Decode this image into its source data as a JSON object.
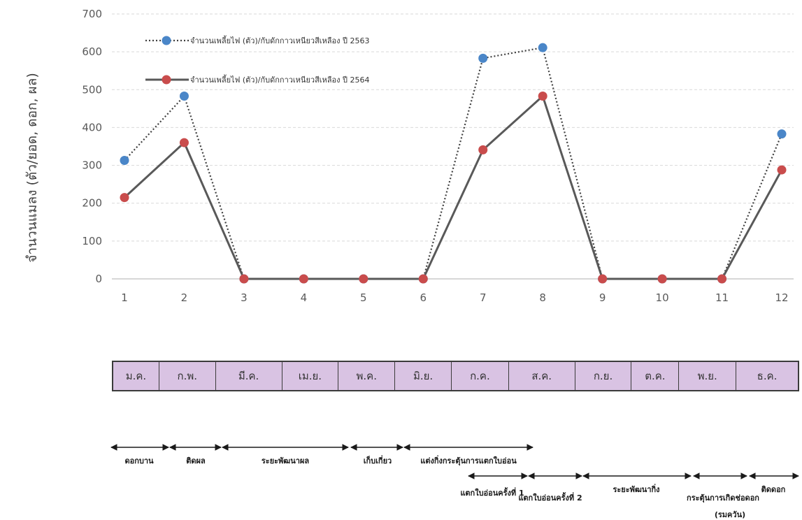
{
  "chart_data": {
    "type": "line",
    "x": [
      1,
      2,
      3,
      4,
      5,
      6,
      7,
      8,
      9,
      10,
      11,
      12
    ],
    "ylabel": "จำนวนแมลง (ตัว/ยอด, ดอก, ผล)",
    "ylim": [
      0,
      700
    ],
    "yticks": [
      0,
      100,
      200,
      300,
      400,
      500,
      600,
      700
    ],
    "grid": true,
    "legend_position": "top-left",
    "series": [
      {
        "name": "จำนวนเพลี้ยไฟ (ตัว)/กับดักกาวเหนียวสีเหลือง ปี 2563",
        "style": "dotted",
        "line_color": "#404040",
        "marker_color": "#4a86c8",
        "values": [
          313,
          483,
          0,
          0,
          0,
          0,
          583,
          611,
          0,
          0,
          0,
          383
        ]
      },
      {
        "name": "จำนวนเพลี้ยไฟ (ตัว)/กับดักกาวเหนียวสีเหลือง ปี 2564",
        "style": "solid",
        "line_color": "#595959",
        "marker_color": "#c94c4c",
        "values": [
          215,
          360,
          0,
          0,
          0,
          0,
          341,
          483,
          0,
          0,
          0,
          288
        ]
      }
    ]
  },
  "months": [
    "ม.ค.",
    "ก.พ.",
    "มี.ค.",
    "เม.ย.",
    "พ.ค.",
    "มิ.ย.",
    "ก.ค.",
    "ส.ค.",
    "ก.ย.",
    "ต.ค.",
    "พ.ย.",
    "ธ.ค."
  ],
  "phases": [
    {
      "label": "ดอกบาน"
    },
    {
      "label": "ติดผล"
    },
    {
      "label": "ระยะพัฒนาผล"
    },
    {
      "label": "เก็บเกี่ยว"
    },
    {
      "label": "แต่งกิ่งกระตุ้นการแตกใบอ่อน"
    },
    {
      "label": "แตกใบอ่อนครั้งที่ 1"
    },
    {
      "label": "แตกใบอ่อนครั้งที่ 2"
    },
    {
      "label": "ระยะพัฒนากิ่ง"
    },
    {
      "label": "กระตุ้นการเกิดช่อดอก"
    },
    {
      "label": "(รมควัน)"
    },
    {
      "label": "ติดดอก"
    }
  ],
  "colors": {
    "month_bar_bg": "#d9c3e3",
    "grid": "#d9d9d9",
    "arrow": "#1a1a1a"
  }
}
